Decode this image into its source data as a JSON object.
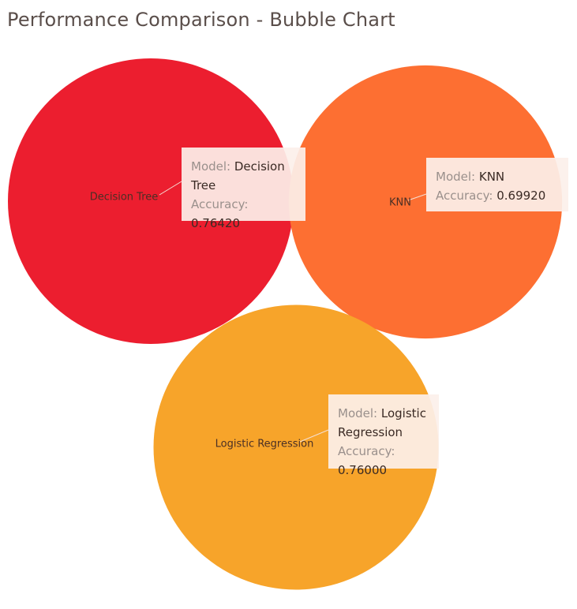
{
  "title": "Performance Comparison - Bubble Chart",
  "chart_data": {
    "type": "bubble",
    "title": "Performance Comparison - Bubble Chart",
    "size_measure": "Accuracy",
    "points": [
      {
        "model": "Decision Tree",
        "accuracy": 0.7642,
        "color": "#ec1e2f"
      },
      {
        "model": "KNN",
        "accuracy": 0.6992,
        "color": "#fd6f32"
      },
      {
        "model": "Logistic Regression",
        "accuracy": 0.76,
        "color": "#f7a42a"
      }
    ]
  },
  "tooltips": [
    {
      "model_key": "Model:",
      "model_value": "Decision Tree",
      "accuracy_key": "Accuracy:",
      "accuracy_value": "0.76420"
    },
    {
      "model_key": "Model:",
      "model_value": "KNN",
      "accuracy_key": "Accuracy:",
      "accuracy_value": "0.69920"
    },
    {
      "model_key": "Model:",
      "model_value": "Logistic Regression",
      "accuracy_key": "Accuracy:",
      "accuracy_value": "0.76000"
    }
  ]
}
